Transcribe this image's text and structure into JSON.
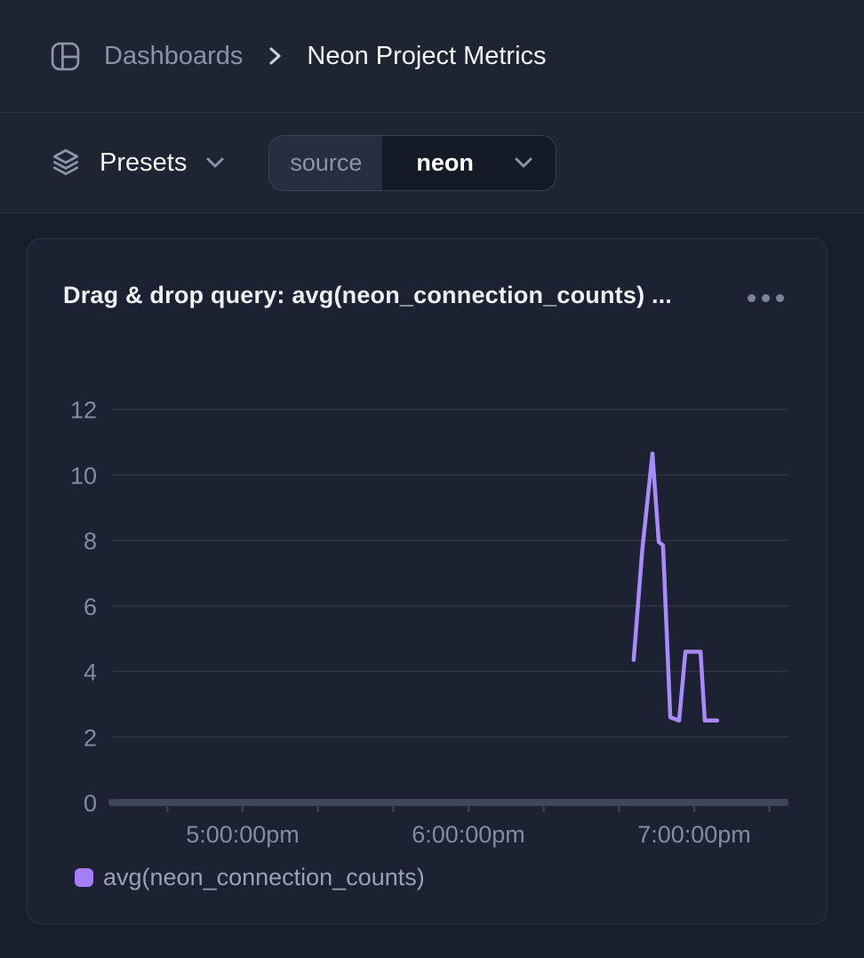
{
  "header": {
    "breadcrumb": {
      "root": "Dashboards",
      "current": "Neon Project Metrics"
    }
  },
  "toolbar": {
    "presets_label": "Presets",
    "source_filter": {
      "key": "source",
      "value": "neon"
    }
  },
  "panel": {
    "title": "Drag & drop query: avg(neon_connection_counts) ...",
    "menu_icon": "ellipsis-icon"
  },
  "colors": {
    "series_line": "#a78bfa",
    "legend_swatch": "#a67ef7",
    "background": "#1f2433",
    "card_background": "#1c2231"
  },
  "chart_data": {
    "type": "line",
    "title": "Drag & drop query: avg(neon_connection_counts) ...",
    "xlabel": "",
    "ylabel": "",
    "grid": "horizontal",
    "y_axis": {
      "ticks": [
        0,
        2,
        4,
        6,
        8,
        10,
        12
      ],
      "range": [
        0,
        12
      ]
    },
    "x_axis": {
      "tick_labels": [
        "5:00:00pm",
        "6:00:00pm",
        "7:00:00pm"
      ],
      "tick_hours_after_5pm": [
        0,
        1,
        2
      ],
      "minor_tick_hours_after_5pm": [
        -0.3333,
        0,
        0.3333,
        0.6667,
        1,
        1.3333,
        1.6667,
        2,
        2.3333
      ],
      "minor_tick_interval_minutes": 20,
      "domain_hours_after_5pm": [
        -0.6,
        2.43
      ]
    },
    "legend": {
      "position": "bottom-left",
      "entries": [
        "avg(neon_connection_counts)"
      ]
    },
    "series": [
      {
        "name": "avg(neon_connection_counts)",
        "color": "#a78bfa",
        "points": [
          {
            "time": "6:43:55pm",
            "x_hours_after_5pm": 1.732,
            "value": 4.35
          },
          {
            "time": "6:46:05pm",
            "x_hours_after_5pm": 1.768,
            "value": 7.55
          },
          {
            "time": "6:46:20pm",
            "x_hours_after_5pm": 1.772,
            "value": 7.85
          },
          {
            "time": "6:48:55pm",
            "x_hours_after_5pm": 1.815,
            "value": 10.65
          },
          {
            "time": "6:50:35pm",
            "x_hours_after_5pm": 1.843,
            "value": 7.95
          },
          {
            "time": "6:51:45pm",
            "x_hours_after_5pm": 1.862,
            "value": 7.85
          },
          {
            "time": "6:53:40pm",
            "x_hours_after_5pm": 1.894,
            "value": 2.6
          },
          {
            "time": "6:56:00pm",
            "x_hours_after_5pm": 1.933,
            "value": 2.5
          },
          {
            "time": "6:57:40pm",
            "x_hours_after_5pm": 1.961,
            "value": 4.6
          },
          {
            "time": "7:01:40pm",
            "x_hours_after_5pm": 2.028,
            "value": 4.6
          },
          {
            "time": "7:02:50pm",
            "x_hours_after_5pm": 2.047,
            "value": 2.5
          },
          {
            "time": "7:06:05pm",
            "x_hours_after_5pm": 2.102,
            "value": 2.5
          }
        ]
      }
    ]
  }
}
